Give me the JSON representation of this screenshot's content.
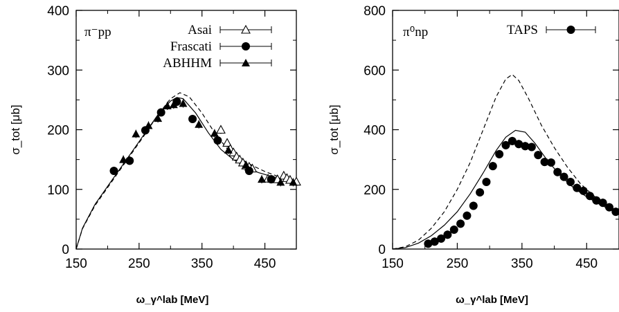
{
  "chart_data": [
    {
      "type": "scatter",
      "panel_label": "π⁻pp",
      "xlabel": "ω_γ^lab  [MeV]",
      "ylabel": "σ_tot  [μb]",
      "xlim": [
        150,
        500
      ],
      "ylim": [
        0,
        400
      ],
      "x_ticks": [
        150,
        250,
        350,
        450
      ],
      "y_ticks": [
        0,
        100,
        200,
        300,
        400
      ],
      "legend_position": "top-right",
      "series": [
        {
          "name": "Asai",
          "marker": "open-triangle",
          "x": [
            380,
            390,
            395,
            400,
            405,
            410,
            415,
            420,
            425,
            430,
            455,
            470,
            480,
            485,
            490,
            500
          ],
          "y": [
            200,
            178,
            168,
            162,
            155,
            150,
            145,
            140,
            138,
            135,
            118,
            117,
            123,
            119,
            116,
            113
          ]
        },
        {
          "name": "Frascati",
          "marker": "filled-circle",
          "x": [
            210,
            235,
            260,
            285,
            310,
            335,
            375,
            425,
            460
          ],
          "y": [
            131,
            148,
            199,
            229,
            247,
            218,
            182,
            131,
            117
          ]
        },
        {
          "name": "ABHHM",
          "marker": "filled-triangle",
          "x": [
            225,
            245,
            265,
            280,
            295,
            305,
            320,
            345,
            370,
            392,
            420,
            445,
            475,
            495
          ],
          "y": [
            150,
            193,
            207,
            219,
            240,
            242,
            244,
            209,
            194,
            166,
            141,
            117,
            112,
            112
          ]
        },
        {
          "name": "solid curve",
          "style": "solid",
          "x": [
            150,
            160,
            180,
            200,
            220,
            240,
            260,
            280,
            300,
            310,
            320,
            340,
            360,
            380,
            400,
            420,
            440,
            460,
            480,
            500
          ],
          "y": [
            0,
            35,
            75,
            105,
            135,
            165,
            195,
            225,
            248,
            254,
            252,
            228,
            195,
            167,
            150,
            137,
            128,
            122,
            117,
            113
          ]
        },
        {
          "name": "dashed curve",
          "style": "dashed",
          "x": [
            150,
            160,
            180,
            200,
            220,
            240,
            260,
            280,
            300,
            315,
            330,
            350,
            370,
            390,
            410,
            430,
            450,
            470,
            490,
            500
          ],
          "y": [
            0,
            34,
            73,
            103,
            133,
            163,
            193,
            225,
            252,
            262,
            255,
            228,
            195,
            168,
            152,
            140,
            130,
            122,
            116,
            114
          ]
        }
      ]
    },
    {
      "type": "scatter",
      "panel_label": "π⁰np",
      "xlabel": "ω_γ^lab  [MeV]",
      "ylabel": "σ_tot  [μb]",
      "xlim": [
        150,
        500
      ],
      "ylim": [
        0,
        800
      ],
      "x_ticks": [
        150,
        250,
        350,
        450
      ],
      "y_ticks": [
        0,
        200,
        400,
        600,
        800
      ],
      "legend_position": "top-right",
      "series": [
        {
          "name": "TAPS",
          "marker": "filled-circle",
          "x": [
            205,
            215,
            225,
            235,
            245,
            255,
            265,
            275,
            285,
            295,
            305,
            315,
            325,
            335,
            345,
            355,
            365,
            375,
            385,
            395,
            405,
            415,
            425,
            435,
            445,
            455,
            465,
            475,
            485,
            495
          ],
          "y": [
            18,
            25,
            35,
            48,
            65,
            85,
            112,
            145,
            190,
            225,
            278,
            318,
            348,
            362,
            352,
            345,
            342,
            315,
            292,
            290,
            258,
            242,
            225,
            205,
            195,
            178,
            163,
            155,
            140,
            125
          ]
        },
        {
          "name": "solid curve",
          "style": "solid",
          "x": [
            150,
            170,
            190,
            210,
            230,
            250,
            270,
            290,
            310,
            325,
            340,
            355,
            370,
            390,
            410,
            430,
            450,
            470,
            490,
            500
          ],
          "y": [
            0,
            5,
            20,
            45,
            80,
            125,
            185,
            255,
            330,
            375,
            398,
            392,
            355,
            295,
            245,
            205,
            175,
            150,
            128,
            118
          ]
        },
        {
          "name": "dashed curve",
          "style": "dashed",
          "x": [
            150,
            170,
            190,
            210,
            230,
            250,
            270,
            290,
            310,
            325,
            335,
            345,
            360,
            380,
            400,
            420,
            440,
            460,
            480,
            500
          ],
          "y": [
            0,
            8,
            30,
            70,
            125,
            200,
            290,
            400,
            510,
            570,
            585,
            565,
            505,
            415,
            340,
            275,
            220,
            180,
            150,
            125
          ]
        }
      ]
    }
  ]
}
